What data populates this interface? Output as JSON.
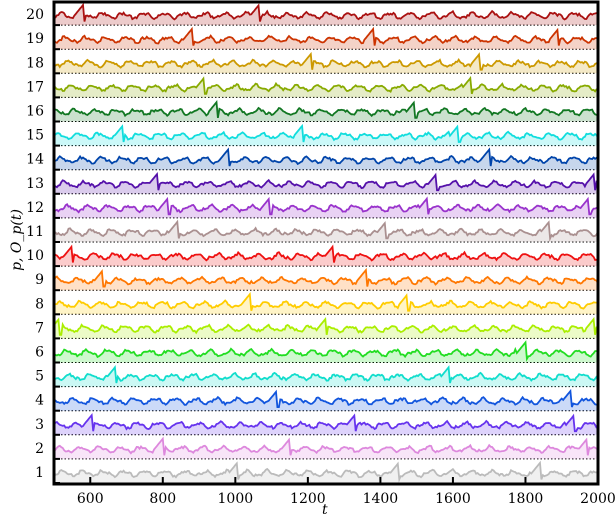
{
  "chart_data": {
    "type": "area",
    "title": "",
    "xlabel": "t",
    "ylabel": "p, O_p(t)",
    "xlim": [
      500,
      2000
    ],
    "xticks": [
      600,
      800,
      1000,
      1200,
      1400,
      1600,
      1800,
      2000
    ],
    "ytick_labels": [
      "1",
      "2",
      "3",
      "4",
      "5",
      "6",
      "7",
      "8",
      "9",
      "10",
      "11",
      "12",
      "13",
      "14",
      "15",
      "16",
      "17",
      "18",
      "19",
      "20"
    ],
    "grid": "dotted baseline per row",
    "legend": "none",
    "series": [
      {
        "name": "1",
        "color": "#bbbbbb",
        "spikes": [
          1005,
          1450,
          1840
        ]
      },
      {
        "name": "2",
        "color": "#dd88dd",
        "spikes": [
          800,
          1150,
          1970
        ]
      },
      {
        "name": "3",
        "color": "#6633ee",
        "spikes": [
          605,
          1330,
          1935
        ]
      },
      {
        "name": "4",
        "color": "#1155dd",
        "spikes": [
          1115,
          1925
        ]
      },
      {
        "name": "5",
        "color": "#11ddcc",
        "spikes": [
          670,
          1590
        ]
      },
      {
        "name": "6",
        "color": "#22dd22",
        "spikes": [
          1800
        ]
      },
      {
        "name": "7",
        "color": "#aaee00",
        "spikes": [
          515,
          1250,
          1990
        ]
      },
      {
        "name": "8",
        "color": "#ffcc00",
        "spikes": [
          1475,
          1040
        ]
      },
      {
        "name": "9",
        "color": "#ff7700",
        "spikes": [
          635,
          1360
        ]
      },
      {
        "name": "10",
        "color": "#ee1111",
        "spikes": [
          550,
          1270
        ]
      },
      {
        "name": "11",
        "color": "#aa9090",
        "spikes": [
          840,
          1415,
          1865
        ]
      },
      {
        "name": "12",
        "color": "#9933cc",
        "spikes": [
          815,
          1095,
          1530,
          1975
        ]
      },
      {
        "name": "13",
        "color": "#5511aa",
        "spikes": [
          785,
          1555,
          1990
        ]
      },
      {
        "name": "14",
        "color": "#0044aa",
        "spikes": [
          980,
          1700
        ]
      },
      {
        "name": "15",
        "color": "#11dddd",
        "spikes": [
          690,
          1185,
          1615
        ]
      },
      {
        "name": "16",
        "color": "#117722",
        "spikes": [
          950,
          1495
        ]
      },
      {
        "name": "17",
        "color": "#88aa00",
        "spikes": [
          915,
          1650
        ]
      },
      {
        "name": "18",
        "color": "#cc9900",
        "spikes": [
          1210,
          1675
        ]
      },
      {
        "name": "19",
        "color": "#cc3300",
        "spikes": [
          880,
          1380,
          1890
        ]
      },
      {
        "name": "20",
        "color": "#aa1111",
        "spikes": [
          580,
          1065
        ]
      }
    ]
  },
  "axes": {
    "xlabel": "t",
    "ylabel": "p, O_p(t)"
  }
}
